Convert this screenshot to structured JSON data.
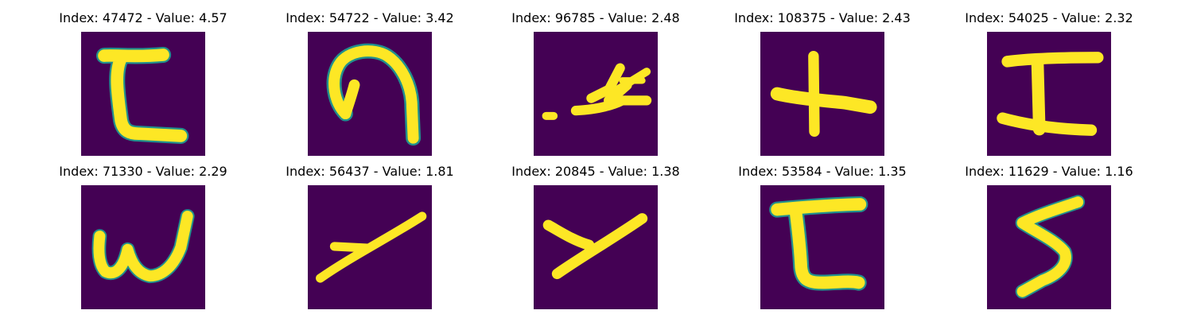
{
  "figure": {
    "background_color": "#440154",
    "stroke_color": "#fde725",
    "panels": [
      {
        "title": "Index: 47472 - Value: 4.57",
        "glyph": "c-hook-glyph"
      },
      {
        "title": "Index: 54722 - Value: 3.42",
        "glyph": "arch-glyph"
      },
      {
        "title": "Index: 96785 - Value: 2.48",
        "glyph": "hand-glyph"
      },
      {
        "title": "Index: 108375 - Value: 2.43",
        "glyph": "plus-glyph"
      },
      {
        "title": "Index: 54025 - Value: 2.32",
        "glyph": "i-glyph"
      },
      {
        "title": "Index: 71330 - Value: 2.29",
        "glyph": "w-glyph"
      },
      {
        "title": "Index: 56437 - Value: 1.81",
        "glyph": "slanted-y-glyph"
      },
      {
        "title": "Index: 20845 - Value: 1.38",
        "glyph": "y-glyph"
      },
      {
        "title": "Index: 53584 - Value: 1.35",
        "glyph": "c-hook-glyph"
      },
      {
        "title": "Index: 11629 - Value: 1.16",
        "glyph": "five-glyph"
      }
    ]
  }
}
